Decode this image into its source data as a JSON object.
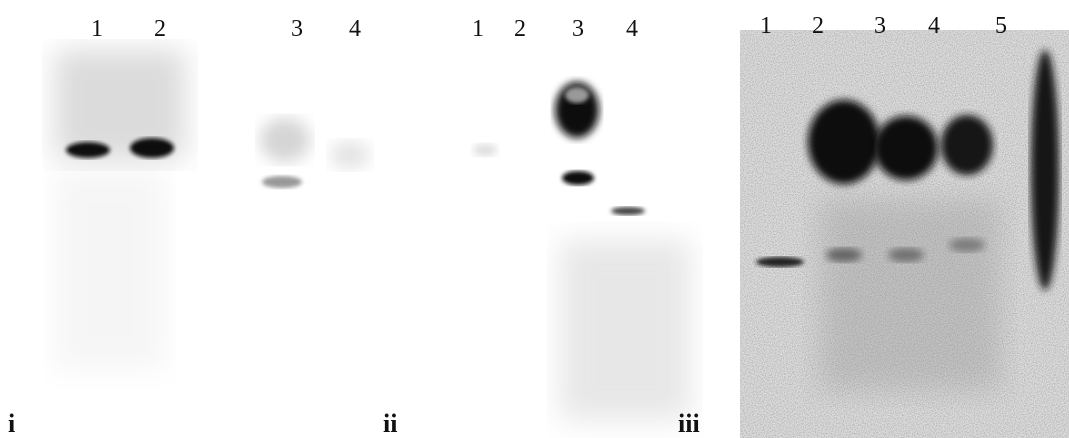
{
  "panels": [
    {
      "label": "i",
      "lanes": [
        "1",
        "2",
        "3",
        "4"
      ]
    },
    {
      "label": "ii",
      "lanes": [
        "1",
        "2",
        "3",
        "4"
      ]
    },
    {
      "label": "iii",
      "lanes": [
        "1",
        "2",
        "3",
        "4",
        "5"
      ]
    }
  ]
}
